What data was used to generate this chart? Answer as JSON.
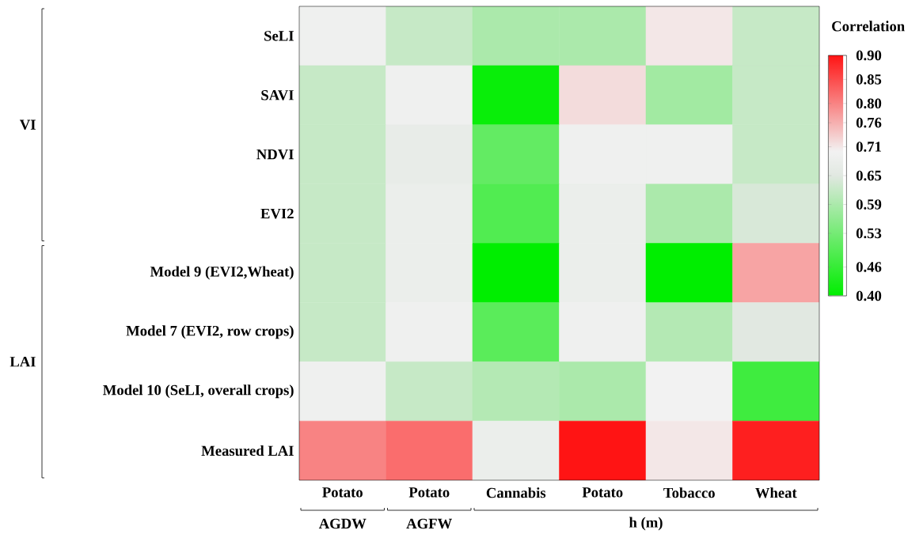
{
  "chart_data": {
    "type": "heatmap",
    "clabel": "Correlation",
    "categories": [
      "Potato",
      "Potato",
      "Cannabis",
      "Potato",
      "Tobacco",
      "Wheat"
    ],
    "y_categories": [
      "SeLI",
      "SAVI",
      "NDVI",
      "EVI2",
      "Model 9 (EVI2,Wheat)",
      "Model 7 (EVI2, row crops)",
      "Model 10 (SeLI, overall crops)",
      "Measured LAI"
    ],
    "cells": [
      [
        0.69,
        0.62,
        0.59,
        0.59,
        0.71,
        0.62
      ],
      [
        0.62,
        0.69,
        0.41,
        0.72,
        0.58,
        0.62
      ],
      [
        0.62,
        0.67,
        0.51,
        0.69,
        0.69,
        0.62
      ],
      [
        0.62,
        0.68,
        0.49,
        0.68,
        0.59,
        0.64
      ],
      [
        0.62,
        0.68,
        0.4,
        0.68,
        0.4,
        0.77
      ],
      [
        0.62,
        0.69,
        0.5,
        0.69,
        0.6,
        0.65
      ],
      [
        0.69,
        0.62,
        0.6,
        0.59,
        0.7,
        0.47
      ],
      [
        0.8,
        0.82,
        0.68,
        0.9,
        0.71,
        0.89
      ]
    ],
    "clim": [
      0.4,
      0.9
    ],
    "cticks": [
      {
        "value": 0.4,
        "label": "0.40"
      },
      0.46,
      0.53,
      0.59,
      0.65,
      0.71,
      0.76,
      {
        "value": 0.8,
        "label": "0.80"
      },
      0.85,
      {
        "value": 0.9,
        "label": "0.90"
      }
    ],
    "annotations": [
      "VI",
      "LAI",
      "AGDW",
      "AGFW",
      "h (m)"
    ]
  }
}
